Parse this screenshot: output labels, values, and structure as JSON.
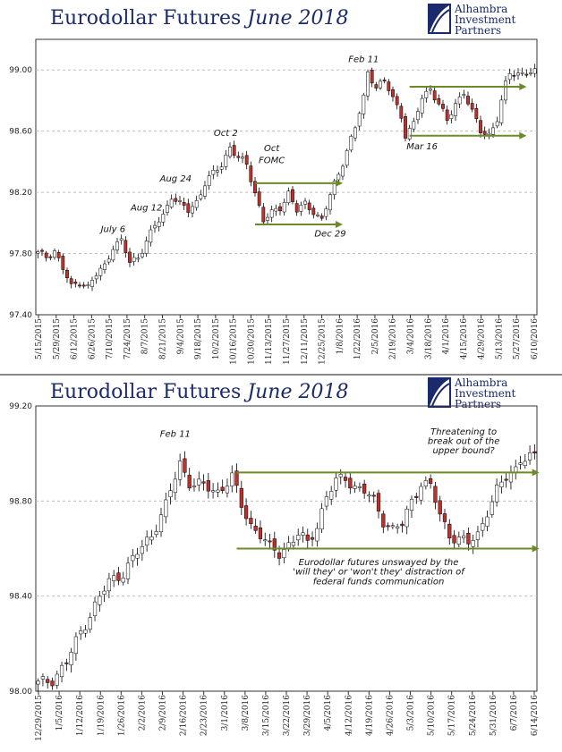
{
  "colors": {
    "title": "#1a2a6c",
    "candle_up": "#ffffff",
    "candle_down": "#c0302a",
    "wick": "#000000",
    "grid": "#bdbdbd",
    "arrow": "#6b8a28"
  },
  "charts": {
    "top": {
      "title_main": "Eurodollar Futures",
      "title_em": "June 2018",
      "logo_lines": [
        "Alhambra",
        "Investment",
        "Partners"
      ]
    },
    "bottom": {
      "title_main": "Eurodollar Futures",
      "title_em": "June 2018",
      "logo_lines": [
        "Alhambra",
        "Investment",
        "Partners"
      ]
    }
  },
  "chart_data": [
    {
      "type": "candlestick",
      "title": "Eurodollar Futures June 2018",
      "ylim": [
        97.4,
        99.2
      ],
      "y_ticks": [
        "97.40",
        "97.80",
        "98.20",
        "98.60",
        "99.00"
      ],
      "x_ticks": [
        "5/15/2015",
        "5/29/2015",
        "6/12/2015",
        "6/26/2015",
        "7/10/2015",
        "7/24/2015",
        "8/7/2015",
        "8/21/2015",
        "9/4/2015",
        "9/18/2015",
        "10/2/2015",
        "10/16/2015",
        "10/30/2015",
        "11/13/2015",
        "11/27/2015",
        "12/11/2015",
        "12/25/2015",
        "1/8/2016",
        "1/22/2016",
        "2/5/2016",
        "2/19/2016",
        "3/4/2016",
        "3/18/2016",
        "4/1/2016",
        "4/15/2016",
        "4/29/2016",
        "5/13/2016",
        "5/27/2016",
        "6/10/2016"
      ],
      "grid": true,
      "close_anchors": [
        [
          0,
          97.8
        ],
        [
          2,
          97.78
        ],
        [
          4,
          97.82
        ],
        [
          6,
          97.7
        ],
        [
          8,
          97.58
        ],
        [
          10,
          97.62
        ],
        [
          12,
          97.58
        ],
        [
          14,
          97.66
        ],
        [
          16,
          97.72
        ],
        [
          18,
          97.85
        ],
        [
          20,
          97.88
        ],
        [
          22,
          97.74
        ],
        [
          24,
          97.78
        ],
        [
          26,
          97.88
        ],
        [
          28,
          97.98
        ],
        [
          30,
          98.05
        ],
        [
          32,
          98.18
        ],
        [
          34,
          98.12
        ],
        [
          36,
          98.08
        ],
        [
          38,
          98.14
        ],
        [
          40,
          98.26
        ],
        [
          42,
          98.32
        ],
        [
          44,
          98.38
        ],
        [
          46,
          98.5
        ],
        [
          48,
          98.42
        ],
        [
          50,
          98.38
        ],
        [
          52,
          98.2
        ],
        [
          54,
          98.02
        ],
        [
          56,
          98.06
        ],
        [
          58,
          98.1
        ],
        [
          60,
          98.2
        ],
        [
          62,
          98.08
        ],
        [
          64,
          98.12
        ],
        [
          66,
          98.08
        ],
        [
          68,
          98.02
        ],
        [
          70,
          98.18
        ],
        [
          72,
          98.32
        ],
        [
          74,
          98.48
        ],
        [
          76,
          98.62
        ],
        [
          78,
          98.82
        ],
        [
          79,
          98.98
        ],
        [
          81,
          98.9
        ],
        [
          83,
          98.92
        ],
        [
          85,
          98.82
        ],
        [
          87,
          98.7
        ],
        [
          88,
          98.58
        ],
        [
          90,
          98.64
        ],
        [
          92,
          98.82
        ],
        [
          94,
          98.88
        ],
        [
          96,
          98.78
        ],
        [
          98,
          98.66
        ],
        [
          100,
          98.78
        ],
        [
          102,
          98.86
        ],
        [
          104,
          98.72
        ],
        [
          106,
          98.6
        ],
        [
          108,
          98.58
        ],
        [
          110,
          98.68
        ],
        [
          112,
          98.9
        ],
        [
          113,
          98.98
        ]
      ],
      "annotations": [
        {
          "text": "July 6",
          "x_index": 18,
          "y": 97.94
        },
        {
          "text": "Aug 12",
          "x_index": 26,
          "y": 98.08
        },
        {
          "text": "Aug 24",
          "x_index": 33,
          "y": 98.27
        },
        {
          "text": "Oct 2",
          "x_index": 45,
          "y": 98.57
        },
        {
          "text": "Oct",
          "x_index": 56,
          "y": 98.47
        },
        {
          "text": "FOMC",
          "x_index": 56,
          "y": 98.39
        },
        {
          "text": "Dec 29",
          "x_index": 70,
          "y": 97.91
        },
        {
          "text": "Feb 11",
          "x_index": 78,
          "y": 99.05
        },
        {
          "text": "Mar 16",
          "x_index": 92,
          "y": 98.48
        }
      ],
      "arrows": [
        {
          "x_start_index": 52,
          "x_end_index": 73,
          "y": 98.26
        },
        {
          "x_start_index": 52,
          "x_end_index": 73,
          "y": 97.99
        },
        {
          "x_start_index": 89,
          "x_end_index": 117,
          "y": 98.89
        },
        {
          "x_start_index": 89,
          "x_end_index": 117,
          "y": 98.57
        }
      ]
    },
    {
      "type": "candlestick",
      "title": "Eurodollar Futures June 2018",
      "ylim": [
        98.0,
        99.2
      ],
      "y_ticks": [
        "98.00",
        "98.40",
        "98.80",
        "99.20"
      ],
      "x_ticks": [
        "12/29/2015",
        "1/5/2016",
        "1/12/2016",
        "1/19/2016",
        "1/26/2016",
        "2/2/2016",
        "2/9/2016",
        "2/16/2016",
        "2/23/2016",
        "3/1/2016",
        "3/8/2016",
        "3/15/2016",
        "3/22/2016",
        "3/29/2016",
        "4/5/2016",
        "4/12/2016",
        "4/19/2016",
        "4/26/2016",
        "5/3/2016",
        "5/10/2016",
        "5/17/2016",
        "5/24/2016",
        "5/31/2016",
        "6/7/2016",
        "6/14/2016"
      ],
      "grid": true,
      "close_anchors": [
        [
          0,
          98.03
        ],
        [
          3,
          98.05
        ],
        [
          6,
          98.12
        ],
        [
          9,
          98.25
        ],
        [
          12,
          98.36
        ],
        [
          15,
          98.46
        ],
        [
          18,
          98.5
        ],
        [
          21,
          98.58
        ],
        [
          24,
          98.66
        ],
        [
          27,
          98.78
        ],
        [
          30,
          98.96
        ],
        [
          32,
          98.88
        ],
        [
          35,
          98.86
        ],
        [
          38,
          98.84
        ],
        [
          41,
          98.9
        ],
        [
          43,
          98.78
        ],
        [
          45,
          98.7
        ],
        [
          47,
          98.66
        ],
        [
          49,
          98.6
        ],
        [
          51,
          98.58
        ],
        [
          53,
          98.62
        ],
        [
          55,
          98.66
        ],
        [
          57,
          98.62
        ],
        [
          59,
          98.7
        ],
        [
          61,
          98.82
        ],
        [
          63,
          98.88
        ],
        [
          65,
          98.9
        ],
        [
          67,
          98.86
        ],
        [
          69,
          98.84
        ],
        [
          71,
          98.8
        ],
        [
          73,
          98.72
        ],
        [
          75,
          98.68
        ],
        [
          77,
          98.7
        ],
        [
          79,
          98.8
        ],
        [
          81,
          98.88
        ],
        [
          83,
          98.86
        ],
        [
          85,
          98.74
        ],
        [
          87,
          98.66
        ],
        [
          89,
          98.64
        ],
        [
          91,
          98.62
        ],
        [
          93,
          98.66
        ],
        [
          95,
          98.76
        ],
        [
          97,
          98.84
        ],
        [
          99,
          98.9
        ],
        [
          101,
          98.94
        ],
        [
          102,
          98.98
        ]
      ],
      "annotations": [
        {
          "text": "Feb 11",
          "x_index": 29,
          "y": 99.07
        },
        {
          "text": "Threatening to",
          "x_index": 90,
          "y": 99.08
        },
        {
          "text": "break out of the",
          "x_index": 90,
          "y": 99.04
        },
        {
          "text": "upper bound?",
          "x_index": 90,
          "y": 99.0
        },
        {
          "text": "Eurodollar futures unswayed by the",
          "x_index": 72,
          "y": 98.53
        },
        {
          "text": "'will they' or 'won't they' distraction of",
          "x_index": 72,
          "y": 98.49
        },
        {
          "text": "federal funds communication",
          "x_index": 72,
          "y": 98.45
        }
      ],
      "arrows": [
        {
          "x_start_index": 42,
          "x_end_index": 106,
          "y": 98.92
        },
        {
          "x_start_index": 42,
          "x_end_index": 106,
          "y": 98.6
        }
      ]
    }
  ]
}
